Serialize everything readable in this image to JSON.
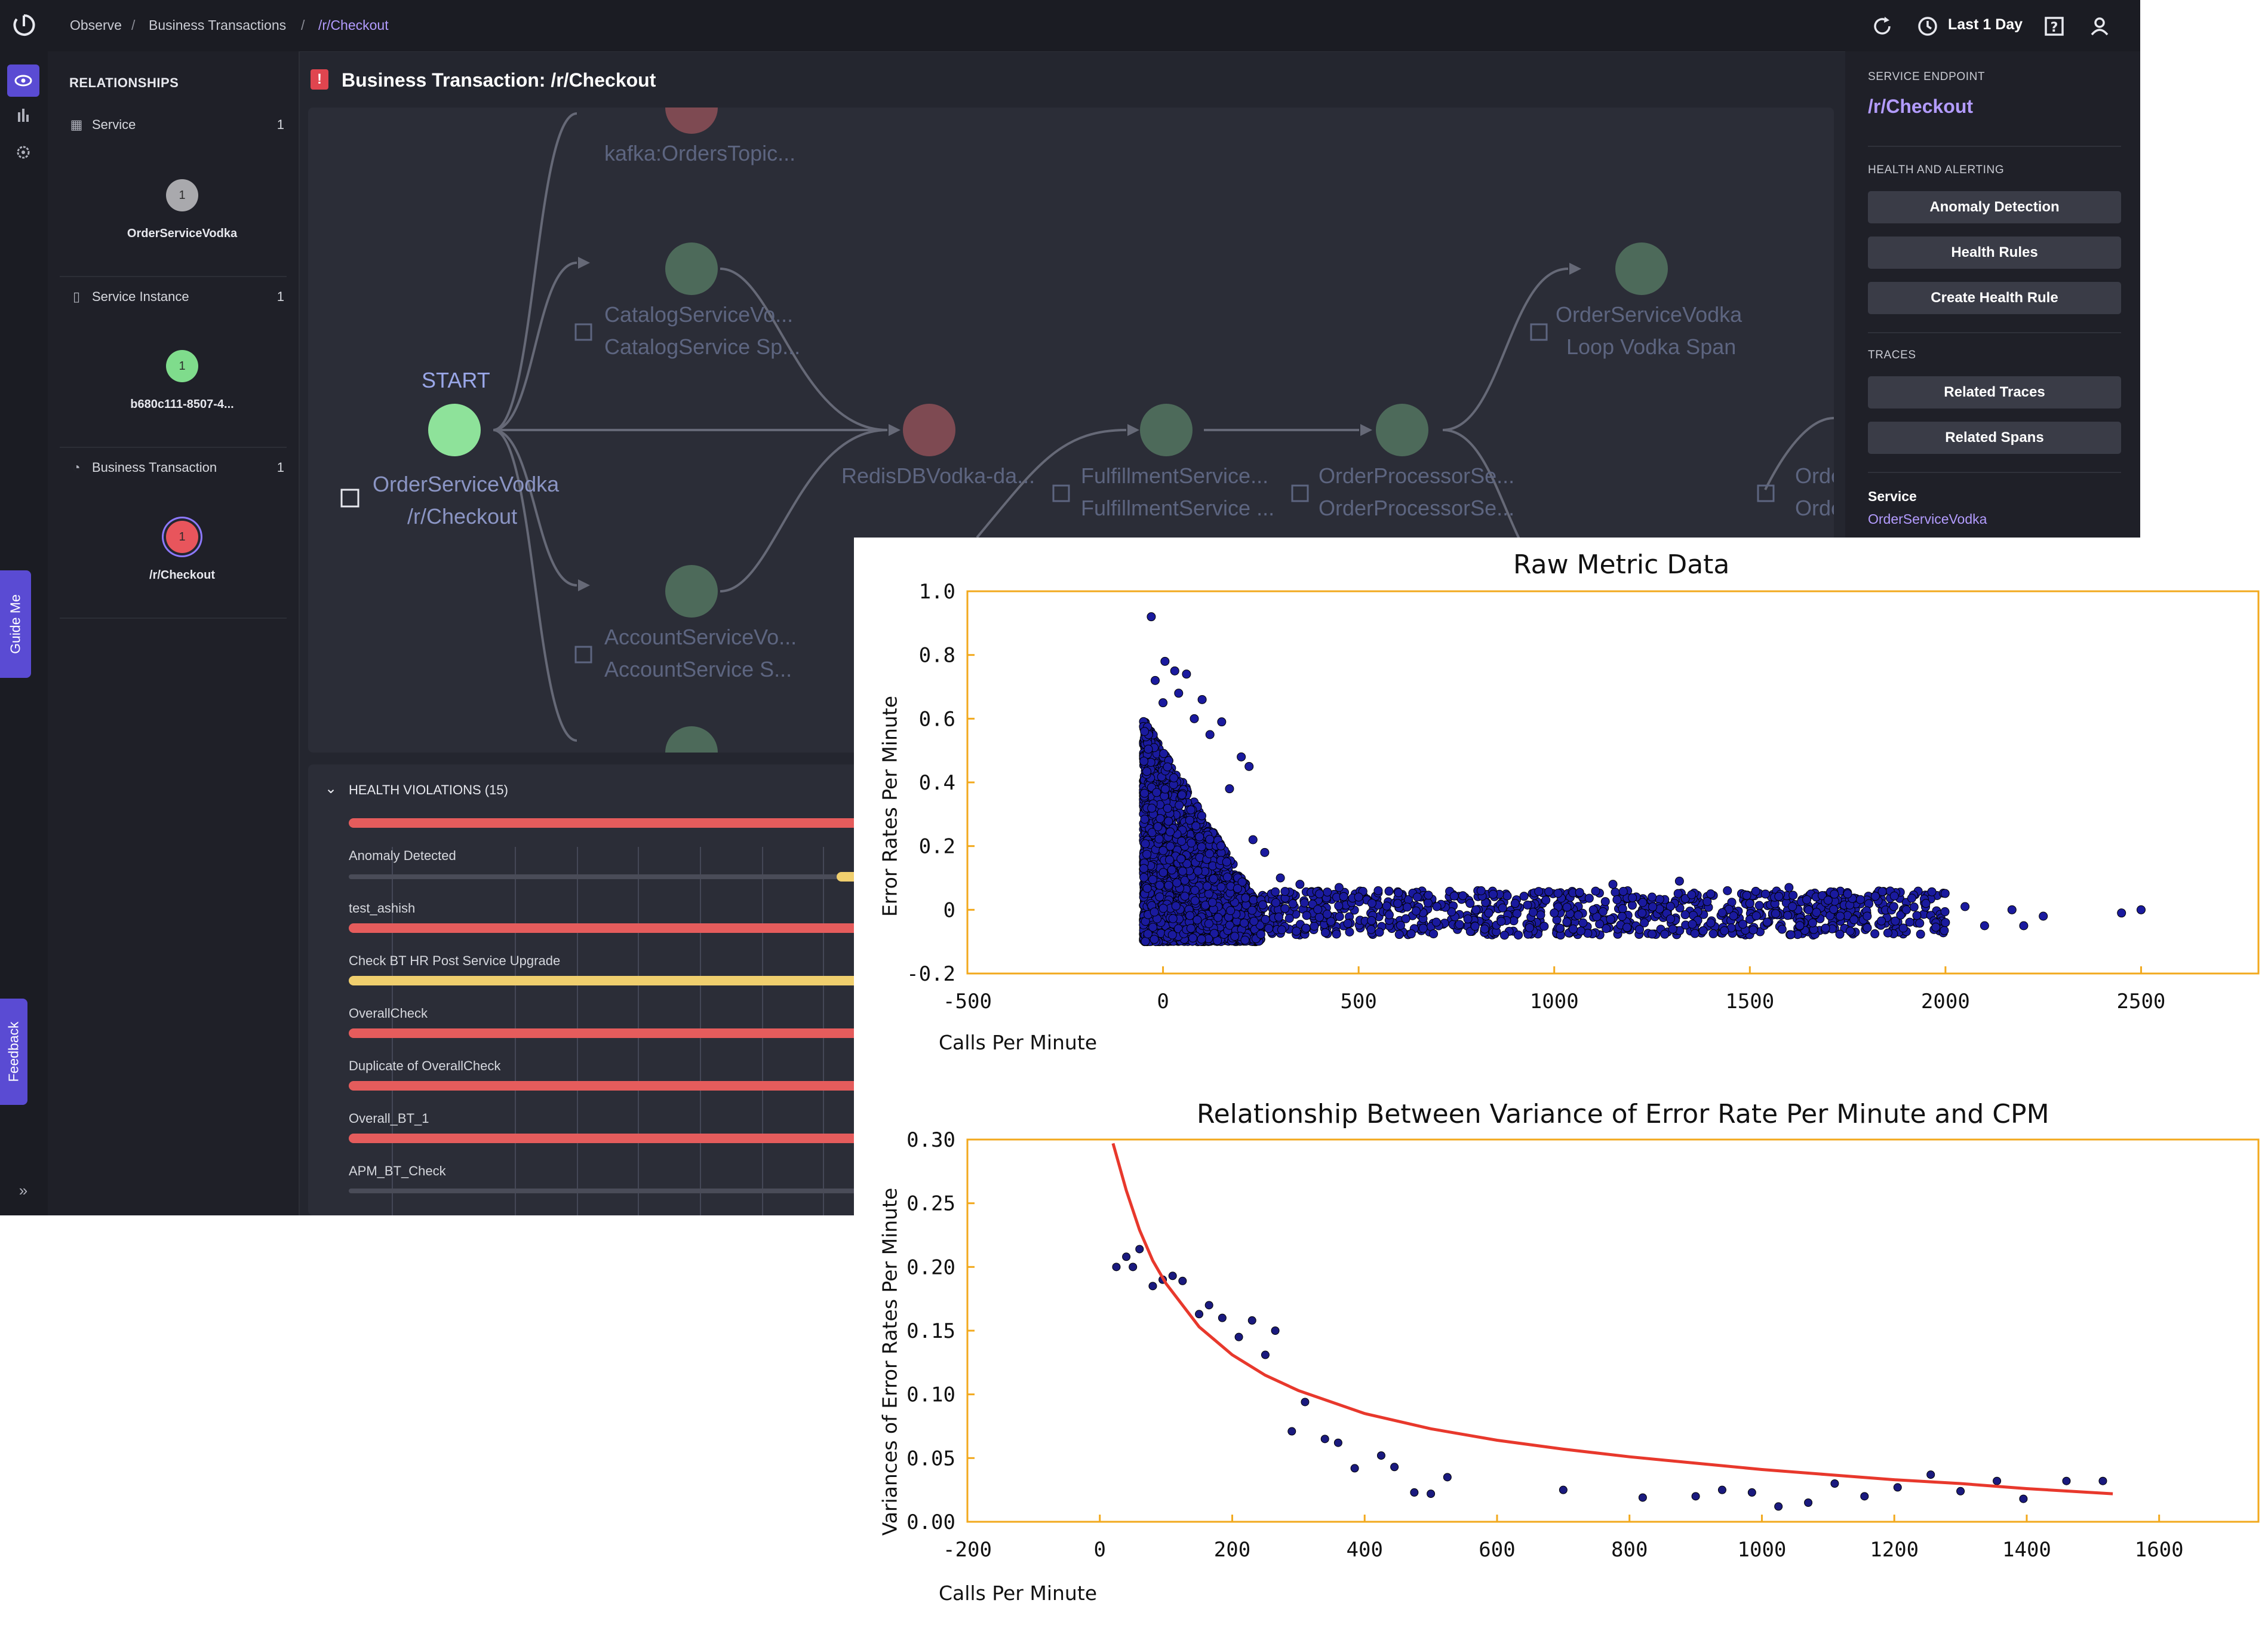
{
  "breadcrumb": [
    "Observe",
    "Business Transactions",
    "/r/Checkout"
  ],
  "topbar": {
    "time_range": "Last 1 Day"
  },
  "side_tabs": {
    "guide": "Guide Me",
    "feedback": "Feedback"
  },
  "relationships": {
    "heading": "RELATIONSHIPS",
    "groups": [
      {
        "label": "Service",
        "count": "1",
        "node_value": "1",
        "node_label": "OrderServiceVodka",
        "node_color": "#a9a9ad"
      },
      {
        "label": "Service Instance",
        "count": "1",
        "node_value": "1",
        "node_label": "b680c111-8507-4...",
        "node_color": "#7fdc8c"
      },
      {
        "label": "Business Transaction",
        "count": "1",
        "node_value": "1",
        "node_label": "/r/Checkout",
        "node_color": "#e8555c"
      }
    ]
  },
  "main": {
    "title": "Business Transaction: /r/Checkout"
  },
  "flow": {
    "start": "START",
    "nodes": [
      {
        "line1": "OrderServiceVodka",
        "line2": "/r/Checkout"
      },
      {
        "line1": "kafka:OrdersTopic...",
        "line2": ""
      },
      {
        "line1": "CatalogServiceVo...",
        "line2": "CatalogService Sp..."
      },
      {
        "line1": "AccountServiceVo...",
        "line2": "AccountService S..."
      },
      {
        "line1": "RedisDBVodka-da...",
        "line2": ""
      },
      {
        "line1": "FulfillmentService...",
        "line2": "FulfillmentService ..."
      },
      {
        "line1": "OrderProcessorSe...",
        "line2": "OrderProcessorSe..."
      },
      {
        "line1": "OrderServiceVodka",
        "line2": "Loop Vodka Span"
      },
      {
        "line1": "Orde",
        "line2": "Orde"
      }
    ]
  },
  "health_violations": {
    "title": "HEALTH VIOLATIONS (15)",
    "rows": [
      "Anomaly Detected",
      "test_ashish",
      "Check BT HR Post Service Upgrade",
      "OverallCheck",
      "Duplicate of OverallCheck",
      "Overall_BT_1",
      "APM_BT_Check"
    ]
  },
  "right_panel": {
    "endpoint_label": "SERVICE ENDPOINT",
    "endpoint": "/r/Checkout",
    "health_label": "HEALTH AND ALERTING",
    "health_buttons": [
      "Anomaly Detection",
      "Health Rules",
      "Create Health Rule"
    ],
    "traces_label": "TRACES",
    "traces_buttons": [
      "Related Traces",
      "Related Spans"
    ],
    "service_label": "Service",
    "service_value": "OrderServiceVodka"
  },
  "chart_data": [
    {
      "type": "scatter",
      "title": "Raw Metric Data",
      "xlabel": "Calls Per Minute",
      "ylabel": "Error Rates  Per Minute",
      "xlim": [
        -500,
        2800
      ],
      "ylim": [
        -0.2,
        1.0
      ],
      "xticks": [
        -500,
        0,
        500,
        1000,
        1500,
        2000,
        2500
      ],
      "yticks": [
        -0.2,
        0,
        0.2,
        0.4,
        0.6,
        0.8,
        1.0
      ],
      "ytick_labels": [
        "-0.2",
        "0",
        "0.2",
        "0.4",
        "0.6",
        "0.8",
        "1.0"
      ],
      "point_color": "#1a1a9e",
      "points": [
        [
          -30,
          0.92
        ],
        [
          5,
          0.78
        ],
        [
          30,
          0.75
        ],
        [
          60,
          0.74
        ],
        [
          100,
          0.66
        ],
        [
          150,
          0.59
        ],
        [
          200,
          0.48
        ],
        [
          220,
          0.45
        ],
        [
          -20,
          0.72
        ],
        [
          0,
          0.65
        ],
        [
          40,
          0.68
        ],
        [
          80,
          0.6
        ],
        [
          120,
          0.55
        ],
        [
          170,
          0.38
        ],
        [
          230,
          0.22
        ],
        [
          260,
          0.18
        ],
        [
          300,
          0.1
        ],
        [
          350,
          0.08
        ],
        [
          400,
          0.05
        ],
        [
          450,
          0.07
        ],
        [
          500,
          0.04
        ],
        [
          550,
          0.06
        ],
        [
          600,
          0.02
        ],
        [
          650,
          0.04
        ],
        [
          700,
          0.01
        ],
        [
          800,
          0.0
        ],
        [
          900,
          0.02
        ],
        [
          1000,
          -0.01
        ],
        [
          1100,
          0.0
        ],
        [
          1150,
          0.08
        ],
        [
          1250,
          0.04
        ],
        [
          1320,
          0.09
        ],
        [
          1400,
          0.05
        ],
        [
          1500,
          0.02
        ],
        [
          1600,
          0.07
        ],
        [
          1700,
          0.03
        ],
        [
          1750,
          0.05
        ],
        [
          1800,
          -0.02
        ],
        [
          1900,
          0.0
        ],
        [
          1950,
          0.02
        ],
        [
          2000,
          -0.04
        ],
        [
          2050,
          0.01
        ],
        [
          2100,
          -0.05
        ],
        [
          2170,
          0.0
        ],
        [
          2200,
          -0.05
        ],
        [
          2250,
          -0.02
        ],
        [
          2450,
          -0.01
        ],
        [
          2500,
          0.0
        ]
      ],
      "dense_cluster": {
        "x_range": [
          -50,
          250
        ],
        "y_range": [
          -0.1,
          0.6
        ],
        "count": 2600
      },
      "tail_cluster": {
        "x_range": [
          250,
          2000
        ],
        "y_range": [
          -0.08,
          0.06
        ],
        "count": 900
      }
    },
    {
      "type": "scatter",
      "title": "Relationship Between Variance of Error Rate Per Minute and CPM",
      "xlabel": "Calls Per Minute",
      "ylabel": "Variances of Error Rates  Per Minute",
      "xlim": [
        -200,
        1750
      ],
      "ylim": [
        0.0,
        0.3
      ],
      "xticks": [
        -200,
        0,
        200,
        400,
        600,
        800,
        1000,
        1200,
        1400,
        1600
      ],
      "yticks": [
        0.0,
        0.05,
        0.1,
        0.15,
        0.2,
        0.25,
        0.3
      ],
      "ytick_labels": [
        "0.00",
        "0.05",
        "0.10",
        "0.15",
        "0.20",
        "0.25",
        "0.30"
      ],
      "point_color": "#1a1a7e",
      "fit_color": "#e8382c",
      "points": [
        [
          25,
          0.2
        ],
        [
          40,
          0.208
        ],
        [
          50,
          0.2
        ],
        [
          60,
          0.214
        ],
        [
          80,
          0.185
        ],
        [
          95,
          0.19
        ],
        [
          110,
          0.193
        ],
        [
          125,
          0.189
        ],
        [
          150,
          0.163
        ],
        [
          165,
          0.17
        ],
        [
          185,
          0.16
        ],
        [
          210,
          0.145
        ],
        [
          230,
          0.158
        ],
        [
          250,
          0.131
        ],
        [
          265,
          0.15
        ],
        [
          290,
          0.071
        ],
        [
          310,
          0.094
        ],
        [
          340,
          0.065
        ],
        [
          360,
          0.062
        ],
        [
          385,
          0.042
        ],
        [
          425,
          0.052
        ],
        [
          445,
          0.043
        ],
        [
          475,
          0.023
        ],
        [
          500,
          0.022
        ],
        [
          525,
          0.035
        ],
        [
          700,
          0.025
        ],
        [
          820,
          0.019
        ],
        [
          900,
          0.02
        ],
        [
          940,
          0.025
        ],
        [
          985,
          0.023
        ],
        [
          1025,
          0.012
        ],
        [
          1070,
          0.015
        ],
        [
          1110,
          0.03
        ],
        [
          1155,
          0.02
        ],
        [
          1205,
          0.027
        ],
        [
          1255,
          0.037
        ],
        [
          1300,
          0.024
        ],
        [
          1355,
          0.032
        ],
        [
          1395,
          0.018
        ],
        [
          1460,
          0.032
        ],
        [
          1515,
          0.032
        ]
      ],
      "fit": [
        [
          20,
          0.297
        ],
        [
          40,
          0.26
        ],
        [
          60,
          0.229
        ],
        [
          80,
          0.205
        ],
        [
          100,
          0.187
        ],
        [
          150,
          0.153
        ],
        [
          200,
          0.131
        ],
        [
          250,
          0.115
        ],
        [
          300,
          0.103
        ],
        [
          400,
          0.085
        ],
        [
          500,
          0.073
        ],
        [
          600,
          0.064
        ],
        [
          700,
          0.057
        ],
        [
          800,
          0.051
        ],
        [
          900,
          0.046
        ],
        [
          1000,
          0.041
        ],
        [
          1100,
          0.037
        ],
        [
          1200,
          0.033
        ],
        [
          1300,
          0.03
        ],
        [
          1400,
          0.026
        ],
        [
          1530,
          0.022
        ]
      ]
    }
  ]
}
